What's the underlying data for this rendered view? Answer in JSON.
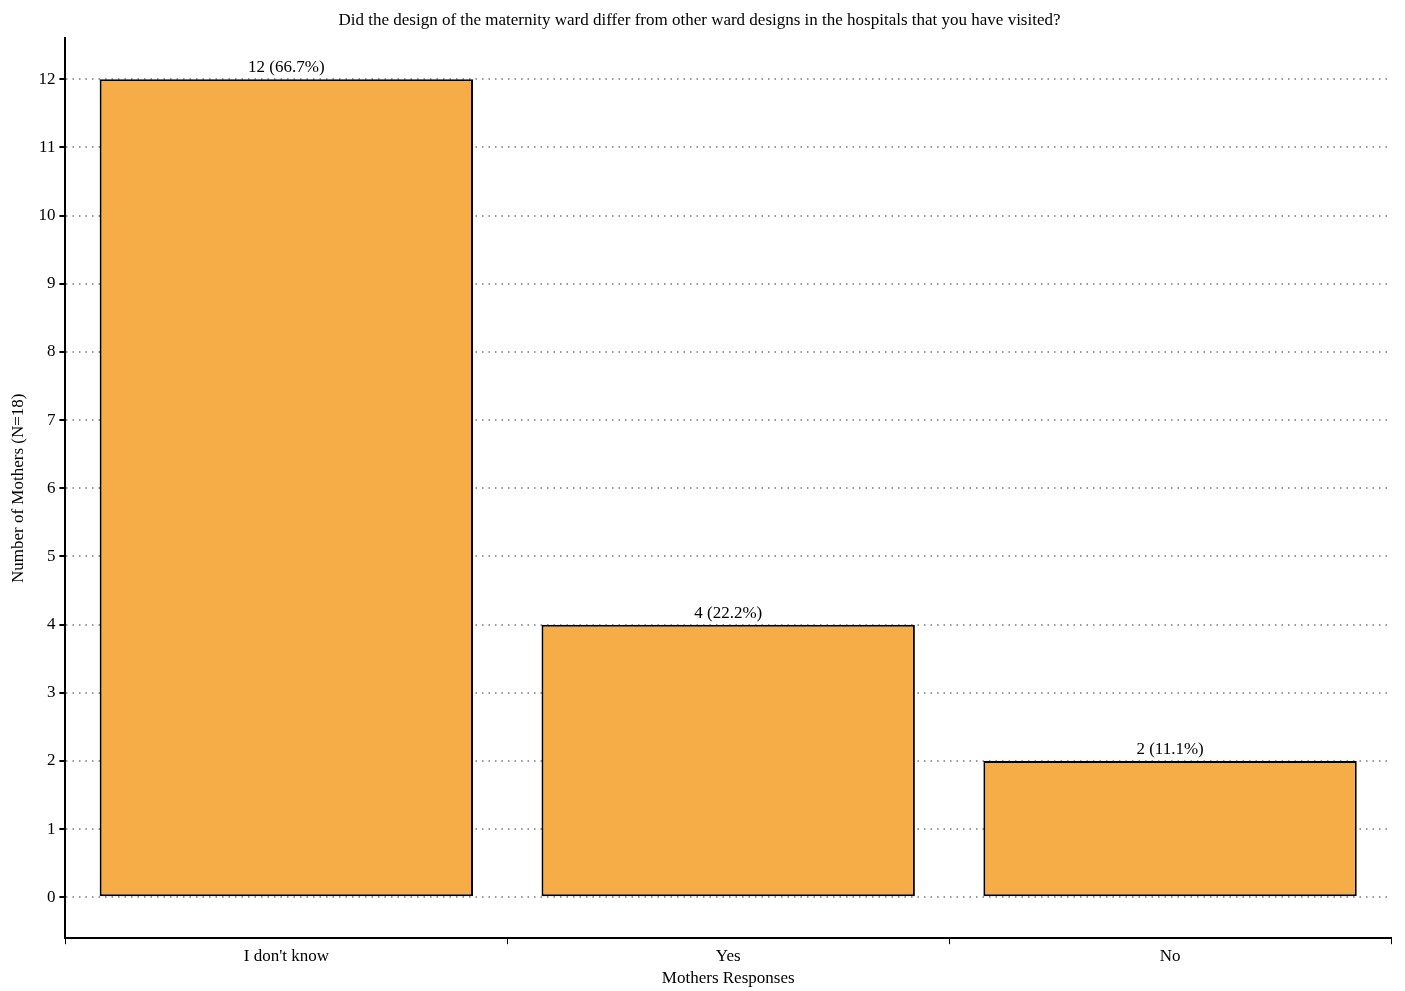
{
  "chart_data": {
    "type": "bar",
    "title": "Did the design of the maternity ward differ from other ward designs in the hospitals that you have visited?",
    "xlabel": "Mothers Responses",
    "ylabel": "Number of Mothers (N=18)",
    "categories": [
      "I don't know",
      "Yes",
      "No"
    ],
    "values": [
      12,
      4,
      2
    ],
    "value_labels": [
      "12 (66.7%)",
      "4 (22.2%)",
      "2 (11.1%)"
    ],
    "color": "#f6ad47",
    "ylim": [
      -0.6,
      12.6
    ],
    "yticks": [
      0,
      1,
      2,
      3,
      4,
      5,
      6,
      7,
      8,
      9,
      10,
      11,
      12
    ],
    "grid": "y",
    "legend": false
  }
}
